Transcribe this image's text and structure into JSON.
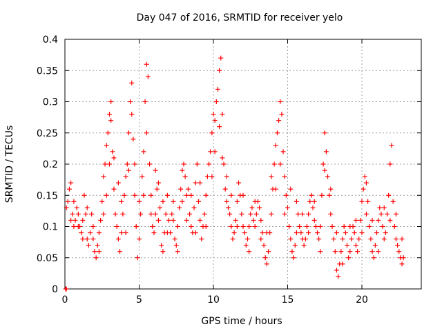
{
  "chart_data": {
    "type": "scatter",
    "title": "Day 047 of 2016, SRMTID for receiver yelo",
    "xlabel": "GPS time / hours",
    "ylabel": "SRMTID / TECUs",
    "xlim": [
      0,
      24
    ],
    "ylim": [
      0,
      0.4
    ],
    "grid": true,
    "marker": "+",
    "color": "#ff0000",
    "x_ticks": [
      0,
      5,
      10,
      15,
      20
    ],
    "x_tick_labels": [
      "0",
      "5",
      "10",
      "15",
      "20"
    ],
    "y_ticks": [
      0,
      0.05,
      0.1,
      0.15,
      0.2,
      0.25,
      0.3,
      0.35,
      0.4
    ],
    "y_tick_labels": [
      "0",
      "0.05",
      "0.1",
      "0.15",
      "0.2",
      "0.25",
      "0.3",
      "0.35",
      "0.4"
    ],
    "series": [
      {
        "name": "SRMTID",
        "points": [
          [
            0.05,
            0.0
          ],
          [
            0.1,
            0.0
          ],
          [
            0.1,
            0.13
          ],
          [
            0.2,
            0.14
          ],
          [
            0.3,
            0.16
          ],
          [
            0.4,
            0.17
          ],
          [
            0.5,
            0.12
          ],
          [
            0.6,
            0.1
          ],
          [
            0.7,
            0.11
          ],
          [
            0.8,
            0.13
          ],
          [
            0.9,
            0.12
          ],
          [
            1.0,
            0.1
          ],
          [
            1.1,
            0.09
          ],
          [
            1.2,
            0.11
          ],
          [
            1.3,
            0.15
          ],
          [
            1.4,
            0.12
          ],
          [
            1.5,
            0.08
          ],
          [
            1.6,
            0.07
          ],
          [
            1.7,
            0.09
          ],
          [
            1.8,
            0.12
          ],
          [
            1.9,
            0.1
          ],
          [
            2.0,
            0.06
          ],
          [
            2.1,
            0.05
          ],
          [
            2.2,
            0.07
          ],
          [
            2.3,
            0.09
          ],
          [
            2.4,
            0.11
          ],
          [
            2.5,
            0.14
          ],
          [
            2.6,
            0.18
          ],
          [
            2.7,
            0.2
          ],
          [
            2.8,
            0.23
          ],
          [
            2.9,
            0.25
          ],
          [
            3.0,
            0.28
          ],
          [
            3.1,
            0.3
          ],
          [
            3.2,
            0.22
          ],
          [
            3.3,
            0.16
          ],
          [
            3.4,
            0.12
          ],
          [
            3.5,
            0.1
          ],
          [
            3.6,
            0.08
          ],
          [
            3.7,
            0.06
          ],
          [
            3.8,
            0.09
          ],
          [
            3.9,
            0.12
          ],
          [
            4.0,
            0.15
          ],
          [
            4.1,
            0.18
          ],
          [
            4.2,
            0.2
          ],
          [
            4.3,
            0.25
          ],
          [
            4.4,
            0.3
          ],
          [
            4.5,
            0.33
          ],
          [
            4.6,
            0.24
          ],
          [
            4.7,
            0.15
          ],
          [
            4.8,
            0.1
          ],
          [
            4.9,
            0.05
          ],
          [
            5.0,
            0.08
          ],
          [
            5.1,
            0.12
          ],
          [
            5.2,
            0.18
          ],
          [
            5.3,
            0.22
          ],
          [
            5.4,
            0.3
          ],
          [
            5.5,
            0.36
          ],
          [
            5.6,
            0.34
          ],
          [
            5.7,
            0.2
          ],
          [
            5.8,
            0.15
          ],
          [
            5.9,
            0.1
          ],
          [
            6.0,
            0.09
          ],
          [
            6.1,
            0.12
          ],
          [
            6.2,
            0.16
          ],
          [
            6.3,
            0.17
          ],
          [
            6.4,
            0.13
          ],
          [
            6.5,
            0.07
          ],
          [
            6.6,
            0.06
          ],
          [
            6.7,
            0.09
          ],
          [
            6.8,
            0.12
          ],
          [
            6.9,
            0.15
          ],
          [
            7.0,
            0.11
          ],
          [
            7.1,
            0.09
          ],
          [
            7.2,
            0.12
          ],
          [
            7.3,
            0.14
          ],
          [
            7.4,
            0.08
          ],
          [
            7.5,
            0.07
          ],
          [
            7.6,
            0.1
          ],
          [
            7.7,
            0.13
          ],
          [
            7.8,
            0.16
          ],
          [
            7.9,
            0.19
          ],
          [
            8.0,
            0.2
          ],
          [
            8.1,
            0.18
          ],
          [
            8.2,
            0.15
          ],
          [
            8.3,
            0.16
          ],
          [
            8.4,
            0.12
          ],
          [
            8.5,
            0.1
          ],
          [
            8.6,
            0.09
          ],
          [
            8.7,
            0.13
          ],
          [
            8.8,
            0.17
          ],
          [
            8.9,
            0.2
          ],
          [
            9.0,
            0.14
          ],
          [
            9.1,
            0.11
          ],
          [
            9.2,
            0.08
          ],
          [
            9.3,
            0.1
          ],
          [
            9.4,
            0.12
          ],
          [
            9.5,
            0.15
          ],
          [
            9.6,
            0.18
          ],
          [
            9.7,
            0.2
          ],
          [
            9.8,
            0.22
          ],
          [
            9.9,
            0.25
          ],
          [
            10.0,
            0.28
          ],
          [
            10.1,
            0.27
          ],
          [
            10.2,
            0.3
          ],
          [
            10.3,
            0.32
          ],
          [
            10.4,
            0.35
          ],
          [
            10.5,
            0.37
          ],
          [
            10.6,
            0.28
          ],
          [
            10.7,
            0.2
          ],
          [
            10.8,
            0.16
          ],
          [
            10.9,
            0.14
          ],
          [
            11.0,
            0.13
          ],
          [
            11.1,
            0.12
          ],
          [
            11.2,
            0.1
          ],
          [
            11.3,
            0.08
          ],
          [
            11.4,
            0.09
          ],
          [
            11.5,
            0.11
          ],
          [
            11.6,
            0.14
          ],
          [
            11.7,
            0.17
          ],
          [
            11.8,
            0.15
          ],
          [
            11.9,
            0.12
          ],
          [
            12.0,
            0.1
          ],
          [
            12.1,
            0.09
          ],
          [
            12.2,
            0.07
          ],
          [
            12.3,
            0.08
          ],
          [
            12.4,
            0.1
          ],
          [
            12.5,
            0.12
          ],
          [
            12.6,
            0.13
          ],
          [
            12.7,
            0.11
          ],
          [
            12.8,
            0.1
          ],
          [
            12.9,
            0.12
          ],
          [
            13.0,
            0.14
          ],
          [
            13.1,
            0.13
          ],
          [
            13.2,
            0.11
          ],
          [
            13.3,
            0.09
          ],
          [
            13.4,
            0.07
          ],
          [
            13.5,
            0.05
          ],
          [
            13.6,
            0.04
          ],
          [
            13.7,
            0.06
          ],
          [
            13.8,
            0.09
          ],
          [
            13.9,
            0.12
          ],
          [
            14.0,
            0.16
          ],
          [
            14.1,
            0.2
          ],
          [
            14.2,
            0.23
          ],
          [
            14.3,
            0.25
          ],
          [
            14.4,
            0.27
          ],
          [
            14.5,
            0.3
          ],
          [
            14.6,
            0.28
          ],
          [
            14.7,
            0.22
          ],
          [
            14.8,
            0.18
          ],
          [
            14.9,
            0.15
          ],
          [
            15.0,
            0.13
          ],
          [
            15.1,
            0.1
          ],
          [
            15.2,
            0.08
          ],
          [
            15.3,
            0.06
          ],
          [
            15.4,
            0.05
          ],
          [
            15.5,
            0.07
          ],
          [
            15.6,
            0.09
          ],
          [
            15.7,
            0.12
          ],
          [
            15.8,
            0.1
          ],
          [
            15.9,
            0.09
          ],
          [
            16.0,
            0.08
          ],
          [
            16.1,
            0.07
          ],
          [
            16.2,
            0.08
          ],
          [
            16.3,
            0.1
          ],
          [
            16.4,
            0.12
          ],
          [
            16.5,
            0.14
          ],
          [
            16.6,
            0.15
          ],
          [
            16.7,
            0.13
          ],
          [
            16.8,
            0.11
          ],
          [
            16.9,
            0.1
          ],
          [
            17.0,
            0.09
          ],
          [
            17.1,
            0.08
          ],
          [
            17.2,
            0.1
          ],
          [
            17.3,
            0.15
          ],
          [
            17.4,
            0.2
          ],
          [
            17.5,
            0.25
          ],
          [
            17.6,
            0.22
          ],
          [
            17.7,
            0.18
          ],
          [
            17.8,
            0.15
          ],
          [
            17.9,
            0.12
          ],
          [
            18.0,
            0.1
          ],
          [
            18.1,
            0.08
          ],
          [
            18.2,
            0.06
          ],
          [
            18.3,
            0.03
          ],
          [
            18.4,
            0.02
          ],
          [
            18.5,
            0.04
          ],
          [
            18.6,
            0.06
          ],
          [
            18.7,
            0.08
          ],
          [
            18.8,
            0.1
          ],
          [
            18.9,
            0.09
          ],
          [
            19.0,
            0.07
          ],
          [
            19.1,
            0.05
          ],
          [
            19.2,
            0.06
          ],
          [
            19.3,
            0.08
          ],
          [
            19.4,
            0.1
          ],
          [
            19.5,
            0.09
          ],
          [
            19.6,
            0.07
          ],
          [
            19.7,
            0.06
          ],
          [
            19.8,
            0.08
          ],
          [
            19.9,
            0.11
          ],
          [
            20.0,
            0.14
          ],
          [
            20.1,
            0.16
          ],
          [
            20.2,
            0.18
          ],
          [
            20.3,
            0.17
          ],
          [
            20.4,
            0.14
          ],
          [
            20.5,
            0.1
          ],
          [
            20.6,
            0.08
          ],
          [
            20.7,
            0.06
          ],
          [
            20.8,
            0.05
          ],
          [
            20.9,
            0.07
          ],
          [
            21.0,
            0.09
          ],
          [
            21.1,
            0.11
          ],
          [
            21.2,
            0.13
          ],
          [
            21.3,
            0.12
          ],
          [
            21.4,
            0.1
          ],
          [
            21.5,
            0.08
          ],
          [
            21.6,
            0.09
          ],
          [
            21.7,
            0.12
          ],
          [
            21.8,
            0.15
          ],
          [
            21.9,
            0.2
          ],
          [
            22.0,
            0.23
          ],
          [
            22.1,
            0.14
          ],
          [
            22.2,
            0.1
          ],
          [
            22.3,
            0.08
          ],
          [
            22.4,
            0.07
          ],
          [
            22.5,
            0.06
          ],
          [
            22.6,
            0.05
          ],
          [
            22.7,
            0.04
          ],
          [
            22.8,
            0.05
          ],
          [
            0.4,
            0.11
          ],
          [
            0.6,
            0.14
          ],
          [
            0.9,
            0.1
          ],
          [
            1.2,
            0.08
          ],
          [
            1.5,
            0.13
          ],
          [
            1.9,
            0.08
          ],
          [
            2.3,
            0.06
          ],
          [
            2.6,
            0.12
          ],
          [
            2.8,
            0.15
          ],
          [
            3.0,
            0.2
          ],
          [
            3.1,
            0.27
          ],
          [
            3.3,
            0.21
          ],
          [
            3.6,
            0.17
          ],
          [
            3.8,
            0.14
          ],
          [
            4.1,
            0.09
          ],
          [
            4.3,
            0.19
          ],
          [
            4.5,
            0.28
          ],
          [
            4.7,
            0.2
          ],
          [
            5.0,
            0.14
          ],
          [
            5.3,
            0.15
          ],
          [
            5.5,
            0.25
          ],
          [
            5.8,
            0.12
          ],
          [
            6.1,
            0.19
          ],
          [
            6.3,
            0.11
          ],
          [
            6.6,
            0.14
          ],
          [
            6.9,
            0.09
          ],
          [
            7.3,
            0.11
          ],
          [
            7.6,
            0.06
          ],
          [
            7.9,
            0.14
          ],
          [
            8.2,
            0.11
          ],
          [
            8.5,
            0.15
          ],
          [
            8.8,
            0.09
          ],
          [
            9.1,
            0.17
          ],
          [
            9.5,
            0.1
          ],
          [
            9.9,
            0.18
          ],
          [
            10.1,
            0.22
          ],
          [
            10.4,
            0.26
          ],
          [
            10.6,
            0.21
          ],
          [
            10.9,
            0.18
          ],
          [
            11.2,
            0.15
          ],
          [
            11.6,
            0.1
          ],
          [
            12.0,
            0.15
          ],
          [
            12.4,
            0.06
          ],
          [
            12.8,
            0.14
          ],
          [
            13.2,
            0.08
          ],
          [
            13.6,
            0.09
          ],
          [
            13.9,
            0.18
          ],
          [
            14.2,
            0.16
          ],
          [
            14.5,
            0.2
          ],
          [
            14.8,
            0.12
          ],
          [
            15.2,
            0.16
          ],
          [
            15.6,
            0.14
          ],
          [
            16.0,
            0.12
          ],
          [
            16.4,
            0.09
          ],
          [
            16.8,
            0.14
          ],
          [
            17.2,
            0.06
          ],
          [
            17.5,
            0.19
          ],
          [
            17.9,
            0.16
          ],
          [
            18.3,
            0.09
          ],
          [
            18.7,
            0.04
          ],
          [
            19.2,
            0.1
          ],
          [
            19.6,
            0.11
          ],
          [
            20.0,
            0.09
          ],
          [
            20.3,
            0.12
          ],
          [
            20.7,
            0.11
          ],
          [
            21.1,
            0.06
          ],
          [
            21.5,
            0.13
          ],
          [
            21.9,
            0.11
          ],
          [
            22.3,
            0.12
          ],
          [
            22.7,
            0.08
          ]
        ]
      }
    ]
  }
}
